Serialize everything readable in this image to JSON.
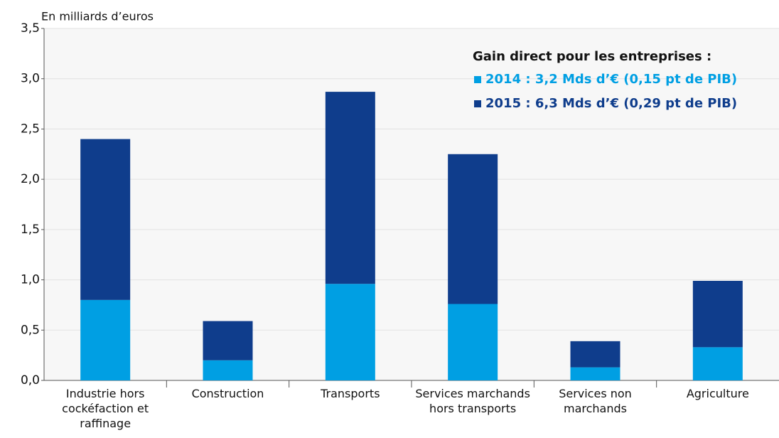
{
  "chart_data": {
    "type": "stacked_bar",
    "y_axis_label": "En milliards d’euros",
    "legend_title": "Gain direct pour les entreprises :",
    "legend_position": "top-right",
    "categories": [
      "Industrie hors cockéfaction et raffinage",
      "Construction",
      "Transports",
      "Services marchands hors transports",
      "Services non marchands",
      "Agriculture"
    ],
    "series": [
      {
        "name": "2014 : 3,2 Mds d’€ (0,15 pt de PIB)",
        "color": "#009fe3",
        "values": [
          0.8,
          0.2,
          0.96,
          0.76,
          0.13,
          0.33
        ]
      },
      {
        "name": "2015 : 6,3 Mds d’€ (0,29 pt de PIB)",
        "color": "#0f3d8c",
        "values": [
          1.6,
          0.39,
          1.91,
          1.49,
          0.26,
          0.66
        ]
      }
    ],
    "ylim": [
      0,
      3.5
    ],
    "yticks": [
      {
        "value": 0,
        "label": "0,0"
      },
      {
        "value": 0.5,
        "label": "0,5"
      },
      {
        "value": 1,
        "label": "1,0"
      },
      {
        "value": 1.5,
        "label": "1,5"
      },
      {
        "value": 2,
        "label": "2,0"
      },
      {
        "value": 2.5,
        "label": "2,5"
      },
      {
        "value": 3,
        "label": "3,0"
      },
      {
        "value": 3.5,
        "label": "3,5"
      }
    ],
    "grid": true
  }
}
